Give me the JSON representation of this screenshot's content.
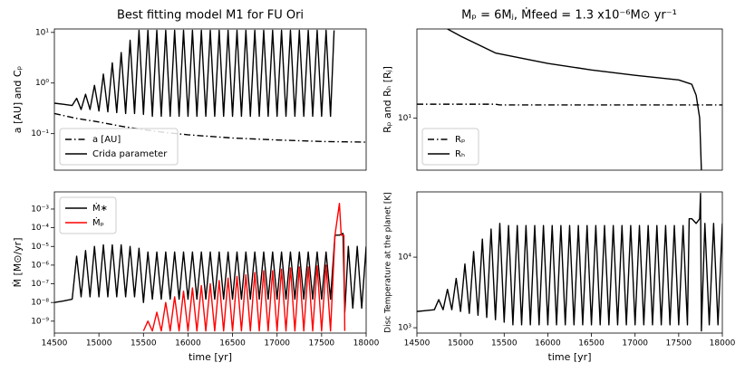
{
  "chart_data": [
    {
      "type": "line",
      "title": "Best fitting model M1 for FU Ori",
      "ylabel": "a [AU] and Cₚ",
      "log_y": true,
      "ylim": [
        0.019,
        11.7
      ],
      "xlim": [
        14500,
        18000
      ],
      "legend": "lower left",
      "yticks": [
        {
          "value": 0.1,
          "label": "10⁻¹"
        },
        {
          "value": 1,
          "label": "10⁰"
        },
        {
          "value": 10,
          "label": "10¹"
        }
      ],
      "series": [
        {
          "name": "a [AU]",
          "color": "#000000",
          "dash": "dashdot",
          "x": [
            14500,
            14750,
            15000,
            15250,
            15500,
            15750,
            16000,
            16500,
            17000,
            17500,
            18000
          ],
          "values": [
            0.25,
            0.2,
            0.17,
            0.14,
            0.12,
            0.105,
            0.095,
            0.082,
            0.075,
            0.07,
            0.068
          ]
        },
        {
          "name": "Crida parameter",
          "color": "#000000",
          "dash": "solid",
          "x": [
            14500,
            14600,
            14700,
            14750,
            14800,
            14850,
            14900,
            14950,
            15000,
            15050,
            15100,
            15150,
            15200,
            15250,
            15300,
            15350,
            15400,
            15450,
            15500,
            15550,
            15600,
            15650,
            15700,
            15750,
            15800,
            15850,
            15900,
            15950,
            16000,
            16050,
            16100,
            16150,
            16200,
            16250,
            16300,
            16350,
            16400,
            16450,
            16500,
            16550,
            16600,
            16650,
            16700,
            16750,
            16800,
            16850,
            16900,
            16950,
            17000,
            17050,
            17100,
            17150,
            17200,
            17250,
            17300,
            17350,
            17400,
            17450,
            17500,
            17550,
            17600,
            17640
          ],
          "values": [
            0.4,
            0.38,
            0.36,
            0.5,
            0.3,
            0.6,
            0.3,
            0.9,
            0.28,
            1.5,
            0.27,
            2.5,
            0.26,
            4,
            0.25,
            7,
            0.25,
            11,
            0.24,
            11,
            0.22,
            11,
            0.22,
            11,
            0.22,
            11,
            0.22,
            11,
            0.22,
            11,
            0.22,
            11,
            0.22,
            11,
            0.22,
            11,
            0.22,
            11,
            0.22,
            11,
            0.22,
            11,
            0.22,
            11,
            0.22,
            11,
            0.22,
            11,
            0.22,
            11,
            0.22,
            11,
            0.22,
            11,
            0.22,
            11,
            0.22,
            11,
            0.22,
            11,
            0.22,
            11
          ]
        }
      ]
    },
    {
      "type": "line",
      "title": "Mₚ = 6Mⱼ, Ṁfeed = 1.3 x10⁻⁶M⊙ yr⁻¹",
      "ylabel": "Rₚ and Rₕ [Rⱼ]",
      "log_y": true,
      "ylim": [
        3.5,
        60
      ],
      "xlim": [
        14500,
        18000
      ],
      "legend": "lower left",
      "yticks": [
        {
          "value": 10,
          "label": "10¹"
        }
      ],
      "series": [
        {
          "name": "Rₚ",
          "color": "#000000",
          "dash": "dashdot",
          "x": [
            14500,
            15000,
            15400,
            15450,
            16000,
            17000,
            18000
          ],
          "values": [
            13.2,
            13.2,
            13.2,
            13.0,
            13.0,
            13.0,
            13.0
          ]
        },
        {
          "name": "Rₕ",
          "color": "#000000",
          "dash": "solid",
          "x": [
            14850,
            15000,
            15400,
            16000,
            16500,
            17000,
            17500,
            17650,
            17700,
            17740,
            17760
          ],
          "values": [
            60,
            52,
            37,
            30,
            26.3,
            23.6,
            21.5,
            19.7,
            15.8,
            10,
            3.5
          ]
        }
      ]
    },
    {
      "type": "line",
      "ylabel": "Ṁ [M⊙/yr]",
      "xlabel": "time [yr]",
      "log_y": true,
      "ylim": [
        2.3e-10,
        0.0083
      ],
      "xlim": [
        14500,
        18000
      ],
      "legend": "upper left",
      "xticks": [
        14500,
        15000,
        15500,
        16000,
        16500,
        17000,
        17500,
        18000
      ],
      "yticks": [
        {
          "value": 1e-09,
          "label": "10⁻⁹"
        },
        {
          "value": 1e-08,
          "label": "10⁻⁸"
        },
        {
          "value": 1e-07,
          "label": "10⁻⁷"
        },
        {
          "value": 1e-06,
          "label": "10⁻⁶"
        },
        {
          "value": 1e-05,
          "label": "10⁻⁵"
        },
        {
          "value": 0.0001,
          "label": "10⁻⁴"
        },
        {
          "value": 0.001,
          "label": "10⁻³"
        }
      ],
      "series": [
        {
          "name": "Ṁ∗",
          "color": "#000000",
          "dash": "solid",
          "x": [
            14500,
            14600,
            14700,
            14750,
            14800,
            14850,
            14900,
            14950,
            15000,
            15050,
            15100,
            15150,
            15200,
            15250,
            15300,
            15350,
            15400,
            15450,
            15500,
            15550,
            15600,
            15650,
            15700,
            15750,
            15800,
            15850,
            15900,
            15950,
            16000,
            16050,
            16100,
            16150,
            16200,
            16250,
            16300,
            16350,
            16400,
            16450,
            16500,
            16550,
            16600,
            16650,
            16700,
            16750,
            16800,
            16850,
            16900,
            16950,
            17000,
            17050,
            17100,
            17150,
            17200,
            17250,
            17300,
            17350,
            17400,
            17450,
            17500,
            17550,
            17600,
            17650,
            17700,
            17740,
            17760,
            17800,
            17850,
            17900,
            17950,
            18000
          ],
          "values": [
            1e-08,
            1.2e-08,
            1.5e-08,
            3e-06,
            2e-08,
            6e-06,
            2e-08,
            1e-05,
            2e-08,
            1.2e-05,
            2e-08,
            1.2e-05,
            2e-08,
            1.2e-05,
            2e-08,
            1e-05,
            2e-08,
            8e-06,
            1e-08,
            5e-06,
            1.5e-08,
            5e-06,
            1.5e-08,
            5e-06,
            1.5e-08,
            5e-06,
            1.5e-08,
            5e-06,
            1.5e-08,
            5e-06,
            1.5e-08,
            5e-06,
            1.5e-08,
            5e-06,
            1.5e-08,
            5e-06,
            1.5e-08,
            5e-06,
            1.5e-08,
            5e-06,
            1.5e-08,
            5e-06,
            1.5e-08,
            5e-06,
            1.5e-08,
            5e-06,
            1.5e-08,
            5e-06,
            1.5e-08,
            5e-06,
            1.5e-08,
            5e-06,
            1.5e-08,
            5e-06,
            1.5e-08,
            5e-06,
            1.5e-08,
            5e-06,
            1.5e-08,
            5e-06,
            1.5e-08,
            4e-05,
            4e-05,
            5e-05,
            3e-09,
            1e-05,
            5e-09,
            1e-05,
            5e-09,
            1e-05
          ]
        },
        {
          "name": "Ṁₚ",
          "color": "#ff0000",
          "dash": "solid",
          "x": [
            15500,
            15550,
            15600,
            15650,
            15700,
            15750,
            15800,
            15850,
            15900,
            15950,
            16000,
            16050,
            16100,
            16150,
            16200,
            16250,
            16300,
            16350,
            16400,
            16450,
            16500,
            16550,
            16600,
            16650,
            16700,
            16750,
            16800,
            16850,
            16900,
            16950,
            17000,
            17050,
            17100,
            17150,
            17200,
            17250,
            17300,
            17350,
            17400,
            17450,
            17500,
            17550,
            17600,
            17650,
            17700,
            17720,
            17750,
            17760
          ],
          "values": [
            3e-10,
            1e-09,
            3e-10,
            3e-09,
            3e-10,
            1e-08,
            3e-10,
            2e-08,
            3e-10,
            4e-08,
            3e-10,
            6e-08,
            3e-10,
            8e-08,
            3e-10,
            1e-07,
            3e-10,
            1.5e-07,
            3e-10,
            2e-07,
            3e-10,
            2.5e-07,
            3e-10,
            3e-07,
            3e-10,
            4e-07,
            3e-10,
            5e-07,
            3e-10,
            5e-07,
            3e-10,
            6e-07,
            3e-10,
            7e-07,
            3e-10,
            8e-07,
            3e-10,
            8e-07,
            3e-10,
            9e-07,
            3e-10,
            1e-06,
            3e-10,
            4e-05,
            0.002,
            4e-05,
            4e-05,
            3e-10
          ]
        }
      ]
    },
    {
      "type": "line",
      "ylabel": "Disc Temperature at the planet [K]",
      "xlabel": "time [yr]",
      "log_y": true,
      "ylim": [
        840,
        84000
      ],
      "xlim": [
        14500,
        18000
      ],
      "xticks": [
        14500,
        15000,
        15500,
        16000,
        16500,
        17000,
        17500,
        18000
      ],
      "yticks": [
        {
          "value": 1000,
          "label": "10³"
        },
        {
          "value": 10000,
          "label": "10⁴"
        }
      ],
      "series": [
        {
          "color": "#000000",
          "dash": "solid",
          "x": [
            14500,
            14600,
            14700,
            14750,
            14800,
            14850,
            14900,
            14950,
            15000,
            15050,
            15100,
            15150,
            15200,
            15250,
            15300,
            15350,
            15400,
            15450,
            15500,
            15550,
            15600,
            15650,
            15700,
            15750,
            15800,
            15850,
            15900,
            15950,
            16000,
            16050,
            16100,
            16150,
            16200,
            16250,
            16300,
            16350,
            16400,
            16450,
            16500,
            16550,
            16600,
            16650,
            16700,
            16750,
            16800,
            16850,
            16900,
            16950,
            17000,
            17050,
            17100,
            17150,
            17200,
            17250,
            17300,
            17350,
            17400,
            17450,
            17500,
            17550,
            17600,
            17620,
            17650,
            17700,
            17740,
            17750,
            17760,
            17800,
            17850,
            17900,
            17950,
            18000
          ],
          "values": [
            1700,
            1750,
            1800,
            2500,
            1800,
            3500,
            1800,
            5000,
            1700,
            8000,
            1600,
            12000,
            1500,
            18000,
            1400,
            25000,
            1300,
            30000,
            1200,
            28000,
            1100,
            28000,
            1100,
            28000,
            1100,
            28000,
            1100,
            28000,
            1100,
            28000,
            1100,
            28000,
            1100,
            28000,
            1100,
            28000,
            1100,
            28000,
            1100,
            28000,
            1100,
            28000,
            1100,
            28000,
            1100,
            28000,
            1100,
            28000,
            1100,
            28000,
            1100,
            28000,
            1100,
            28000,
            1100,
            28000,
            1100,
            28000,
            1100,
            28000,
            1100,
            35000,
            35000,
            30000,
            35000,
            80000,
            900,
            30000,
            1100,
            30000,
            1100,
            30000
          ]
        }
      ]
    }
  ]
}
